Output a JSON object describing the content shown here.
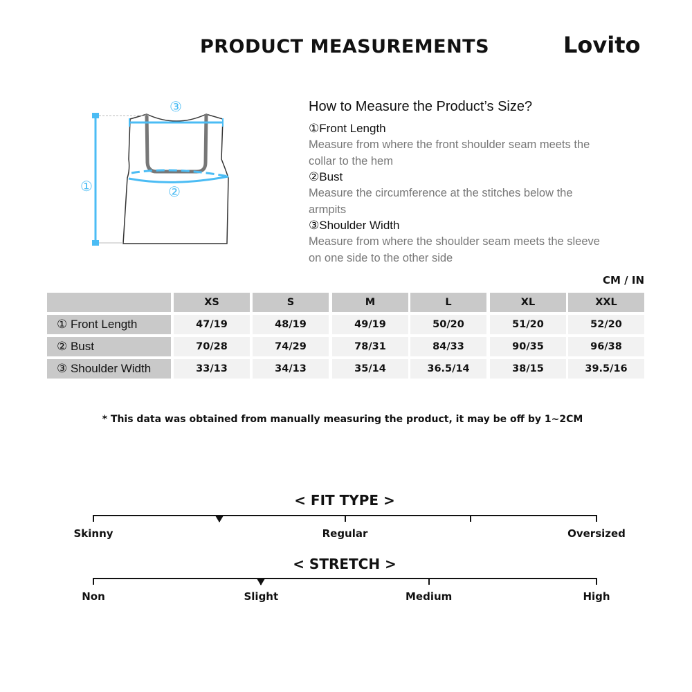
{
  "header": {
    "title": "PRODUCT MEASUREMENTS",
    "brand": "Lovito"
  },
  "diagram": {
    "markers": [
      "①",
      "②",
      "③"
    ],
    "accent": "#4bbcf4"
  },
  "guide": {
    "heading": "How to Measure the Product’s Size?",
    "items": [
      {
        "label": "①Front Length",
        "desc": "Measure from where the front shoulder seam meets the collar to the hem"
      },
      {
        "label": "②Bust",
        "desc": "Measure the circumference at the stitches below the armpits"
      },
      {
        "label": "③Shoulder Width",
        "desc": "Measure from where the shoulder seam meets the sleeve on one side to the other side"
      }
    ]
  },
  "table": {
    "unit": "CM / IN",
    "sizes": [
      "XS",
      "S",
      "M",
      "L",
      "XL",
      "XXL"
    ],
    "rows": [
      {
        "label": "① Front Length",
        "values": [
          "47/19",
          "48/19",
          "49/19",
          "50/20",
          "51/20",
          "52/20"
        ]
      },
      {
        "label": "② Bust",
        "values": [
          "70/28",
          "74/29",
          "78/31",
          "84/33",
          "90/35",
          "96/38"
        ]
      },
      {
        "label": "③ Shoulder Width",
        "values": [
          "33/13",
          "34/13",
          "35/14",
          "36.5/14",
          "38/15",
          "39.5/16"
        ]
      }
    ]
  },
  "note": "* This data was obtained from manually measuring the product, it may be off by 1~2CM",
  "fit": {
    "title": "< FIT TYPE >",
    "labels": [
      "Skinny",
      "Regular",
      "Oversized"
    ],
    "level": 0.25
  },
  "stretch": {
    "title": "< STRETCH >",
    "labels": [
      "Non",
      "Slight",
      "Medium",
      "High"
    ],
    "level": 0.333
  }
}
